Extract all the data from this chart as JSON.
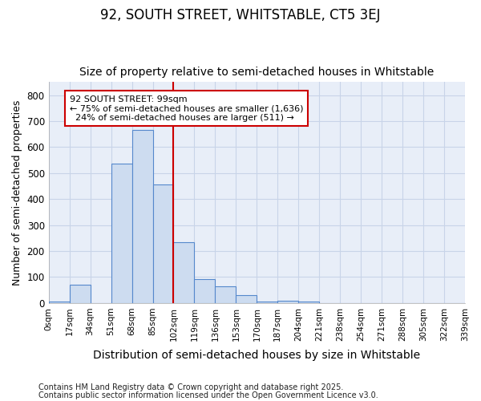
{
  "title1": "92, SOUTH STREET, WHITSTABLE, CT5 3EJ",
  "title2": "Size of property relative to semi-detached houses in Whitstable",
  "xlabel": "Distribution of semi-detached houses by size in Whitstable",
  "ylabel": "Number of semi-detached properties",
  "bin_labels": [
    "0sqm",
    "17sqm",
    "34sqm",
    "51sqm",
    "68sqm",
    "85sqm",
    "102sqm",
    "119sqm",
    "136sqm",
    "153sqm",
    "170sqm",
    "187sqm",
    "204sqm",
    "221sqm",
    "238sqm",
    "254sqm",
    "271sqm",
    "288sqm",
    "305sqm",
    "322sqm",
    "339sqm"
  ],
  "bar_heights": [
    5,
    70,
    0,
    535,
    665,
    455,
    235,
    92,
    65,
    32,
    5,
    10,
    7,
    0,
    0,
    0,
    0,
    0,
    0,
    0
  ],
  "bar_color": "#cddcf0",
  "bar_edge_color": "#5588cc",
  "vline_x": 102,
  "vline_color": "#cc0000",
  "annotation_text": "92 SOUTH STREET: 99sqm\n← 75% of semi-detached houses are smaller (1,636)\n  24% of semi-detached houses are larger (511) →",
  "annotation_box_color": "#ffffff",
  "annotation_box_edge": "#cc0000",
  "ylim": [
    0,
    850
  ],
  "yticks": [
    0,
    100,
    200,
    300,
    400,
    500,
    600,
    700,
    800
  ],
  "footnote1": "Contains HM Land Registry data © Crown copyright and database right 2025.",
  "footnote2": "Contains public sector information licensed under the Open Government Licence v3.0.",
  "fig_bg_color": "#ffffff",
  "plot_bg_color": "#e8eef8",
  "grid_color": "#c8d4e8",
  "title1_fontsize": 12,
  "title2_fontsize": 10,
  "bin_width": 17,
  "n_bars": 20
}
